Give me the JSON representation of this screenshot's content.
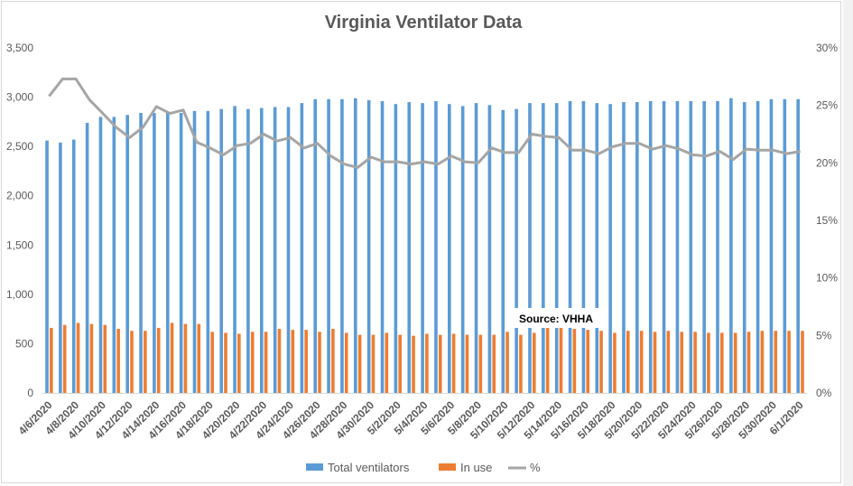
{
  "chart_data": {
    "type": "bar",
    "title": "Virginia Ventilator Data",
    "annotation": "Source: VHHA",
    "categories": [
      "4/6/2020",
      "4/7/2020",
      "4/8/2020",
      "4/9/2020",
      "4/10/2020",
      "4/11/2020",
      "4/12/2020",
      "4/13/2020",
      "4/14/2020",
      "4/15/2020",
      "4/16/2020",
      "4/17/2020",
      "4/18/2020",
      "4/19/2020",
      "4/20/2020",
      "4/21/2020",
      "4/22/2020",
      "4/23/2020",
      "4/24/2020",
      "4/25/2020",
      "4/26/2020",
      "4/27/2020",
      "4/28/2020",
      "4/29/2020",
      "4/30/2020",
      "5/1/2020",
      "5/2/2020",
      "5/3/2020",
      "5/4/2020",
      "5/5/2020",
      "5/6/2020",
      "5/7/2020",
      "5/8/2020",
      "5/9/2020",
      "5/10/2020",
      "5/11/2020",
      "5/12/2020",
      "5/13/2020",
      "5/14/2020",
      "5/15/2020",
      "5/16/2020",
      "5/17/2020",
      "5/18/2020",
      "5/19/2020",
      "5/20/2020",
      "5/21/2020",
      "5/22/2020",
      "5/23/2020",
      "5/24/2020",
      "5/25/2020",
      "5/26/2020",
      "5/27/2020",
      "5/28/2020",
      "5/29/2020",
      "5/30/2020",
      "5/31/2020",
      "6/1/2020"
    ],
    "tick_labels": [
      "4/6/2020",
      "4/8/2020",
      "4/10/2020",
      "4/12/2020",
      "4/14/2020",
      "4/16/2020",
      "4/18/2020",
      "4/20/2020",
      "4/22/2020",
      "4/24/2020",
      "4/26/2020",
      "4/28/2020",
      "4/30/2020",
      "5/2/2020",
      "5/4/2020",
      "5/6/2020",
      "5/8/2020",
      "5/10/2020",
      "5/12/2020",
      "5/14/2020",
      "5/16/2020",
      "5/18/2020",
      "5/20/2020",
      "5/22/2020",
      "5/24/2020",
      "5/26/2020",
      "5/28/2020",
      "5/30/2020",
      "6/1/2020"
    ],
    "series": [
      {
        "name": "Total ventilators",
        "axis": "left",
        "color": "#5b9bd5",
        "values": [
          2560,
          2540,
          2570,
          2740,
          2800,
          2800,
          2820,
          2840,
          2840,
          2840,
          2840,
          2860,
          2860,
          2880,
          2910,
          2880,
          2890,
          2900,
          2900,
          2940,
          2980,
          2980,
          2980,
          2990,
          2970,
          2960,
          2930,
          2950,
          2940,
          2960,
          2930,
          2910,
          2940,
          2920,
          2870,
          2880,
          2940,
          2940,
          2940,
          2960,
          2960,
          2940,
          2930,
          2950,
          2950,
          2960,
          2960,
          2960,
          2960,
          2960,
          2960,
          2990,
          2950,
          2960,
          2980,
          2980,
          2980
        ]
      },
      {
        "name": "In use",
        "axis": "left",
        "color": "#ed7d31",
        "values": [
          660,
          690,
          710,
          700,
          690,
          650,
          630,
          630,
          660,
          710,
          700,
          700,
          620,
          610,
          600,
          620,
          620,
          650,
          640,
          640,
          620,
          650,
          610,
          590,
          590,
          610,
          590,
          580,
          600,
          590,
          600,
          590,
          590,
          590,
          620,
          590,
          610,
          660,
          660,
          650,
          640,
          630,
          610,
          630,
          630,
          620,
          630,
          620,
          620,
          610,
          610,
          610,
          620,
          630,
          630,
          630,
          630
        ]
      },
      {
        "name": "%",
        "axis": "right",
        "color": "#a5a5a5",
        "values": [
          25.8,
          27.3,
          27.3,
          25.5,
          24.3,
          23.1,
          22.2,
          23.1,
          24.9,
          24.3,
          24.6,
          21.8,
          21.3,
          20.7,
          21.5,
          21.7,
          22.5,
          21.9,
          22.2,
          21.3,
          21.7,
          20.6,
          19.9,
          19.6,
          20.5,
          20.1,
          20.1,
          19.9,
          20.1,
          19.9,
          20.6,
          20.1,
          20.0,
          21.3,
          20.9,
          20.9,
          22.5,
          22.3,
          22.2,
          21.1,
          21.1,
          20.8,
          21.4,
          21.7,
          21.7,
          21.2,
          21.5,
          21.2,
          20.7,
          20.6,
          21.0,
          20.3,
          21.2,
          21.1,
          21.1,
          20.8,
          21.0
        ]
      }
    ],
    "y_left": {
      "min": 0,
      "max": 3500,
      "ticks": [
        "0",
        "500",
        "1,000",
        "1,500",
        "2,000",
        "2,500",
        "3,000",
        "3,500"
      ]
    },
    "y_right": {
      "min": 0,
      "max": 30,
      "ticks": [
        "0%",
        "5%",
        "10%",
        "15%",
        "20%",
        "25%",
        "30%"
      ]
    },
    "grid": false,
    "legend_position": "bottom",
    "legend": [
      "Total ventilators",
      "In use",
      "%"
    ]
  }
}
